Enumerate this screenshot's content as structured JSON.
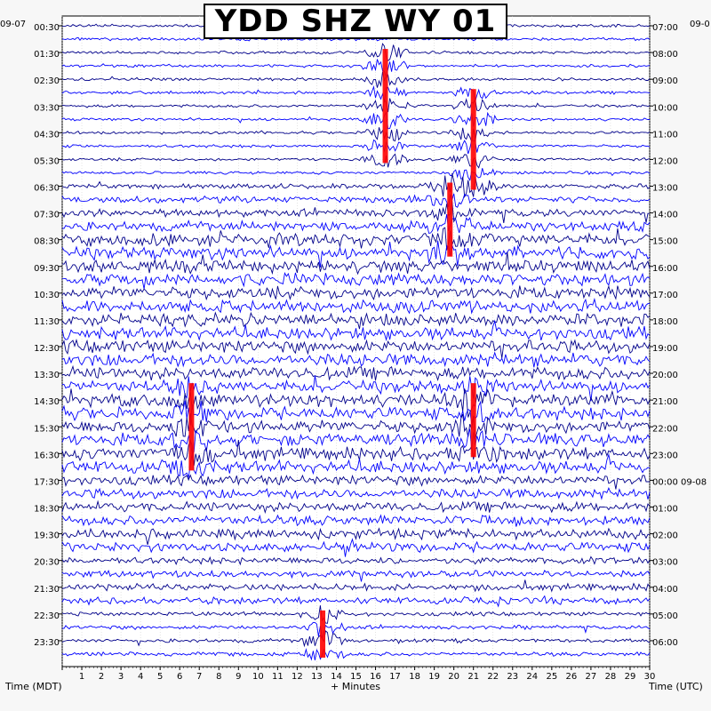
{
  "chart_data": {
    "type": "helicorder",
    "title": "YDD SHZ WY 01",
    "xlabel": "+ Minutes",
    "left_axis_label": "Time (MDT)",
    "right_axis_label": "Time (UTC)",
    "left_date_label": "09-07",
    "right_date_label": "09-0",
    "x_ticks": [
      1,
      2,
      3,
      4,
      5,
      6,
      7,
      8,
      9,
      10,
      11,
      12,
      13,
      14,
      15,
      16,
      17,
      18,
      19,
      20,
      21,
      22,
      23,
      24,
      25,
      26,
      27,
      28,
      29,
      30
    ],
    "xlim": [
      0,
      30
    ],
    "left_times": [
      "00:30",
      "01:30",
      "02:30",
      "03:30",
      "04:30",
      "05:30",
      "06:30",
      "07:30",
      "08:30",
      "09:30",
      "10:30",
      "11:30",
      "12:30",
      "13:30",
      "14:30",
      "15:30",
      "16:30",
      "17:30",
      "18:30",
      "19:30",
      "20:30",
      "21:30",
      "22:30",
      "23:30"
    ],
    "right_times": [
      "07:00",
      "08:00",
      "09:00",
      "10:00",
      "11:00",
      "12:00",
      "13:00",
      "14:00",
      "15:00",
      "16:00",
      "17:00",
      "18:00",
      "19:00",
      "20:00",
      "21:00",
      "22:00",
      "23:00",
      "00:00 09-08",
      "01:00",
      "02:00",
      "03:00",
      "04:00",
      "05:00",
      "06:00"
    ],
    "trace_count": 48,
    "trace_colors": [
      "#00008b",
      "#0000ff"
    ],
    "clip_color": "#ff0000",
    "grid": true,
    "events": [
      {
        "minute": 16.5,
        "from_trace": 2,
        "to_trace": 10,
        "clipped": true
      },
      {
        "minute": 21.0,
        "from_trace": 5,
        "to_trace": 12,
        "clipped": true
      },
      {
        "minute": 19.8,
        "from_trace": 12,
        "to_trace": 17,
        "clipped": true
      },
      {
        "minute": 6.6,
        "from_trace": 27,
        "to_trace": 33,
        "clipped": true
      },
      {
        "minute": 21.0,
        "from_trace": 27,
        "to_trace": 32,
        "clipped": true
      },
      {
        "minute": 13.3,
        "from_trace": 44,
        "to_trace": 47,
        "clipped": true
      }
    ]
  }
}
